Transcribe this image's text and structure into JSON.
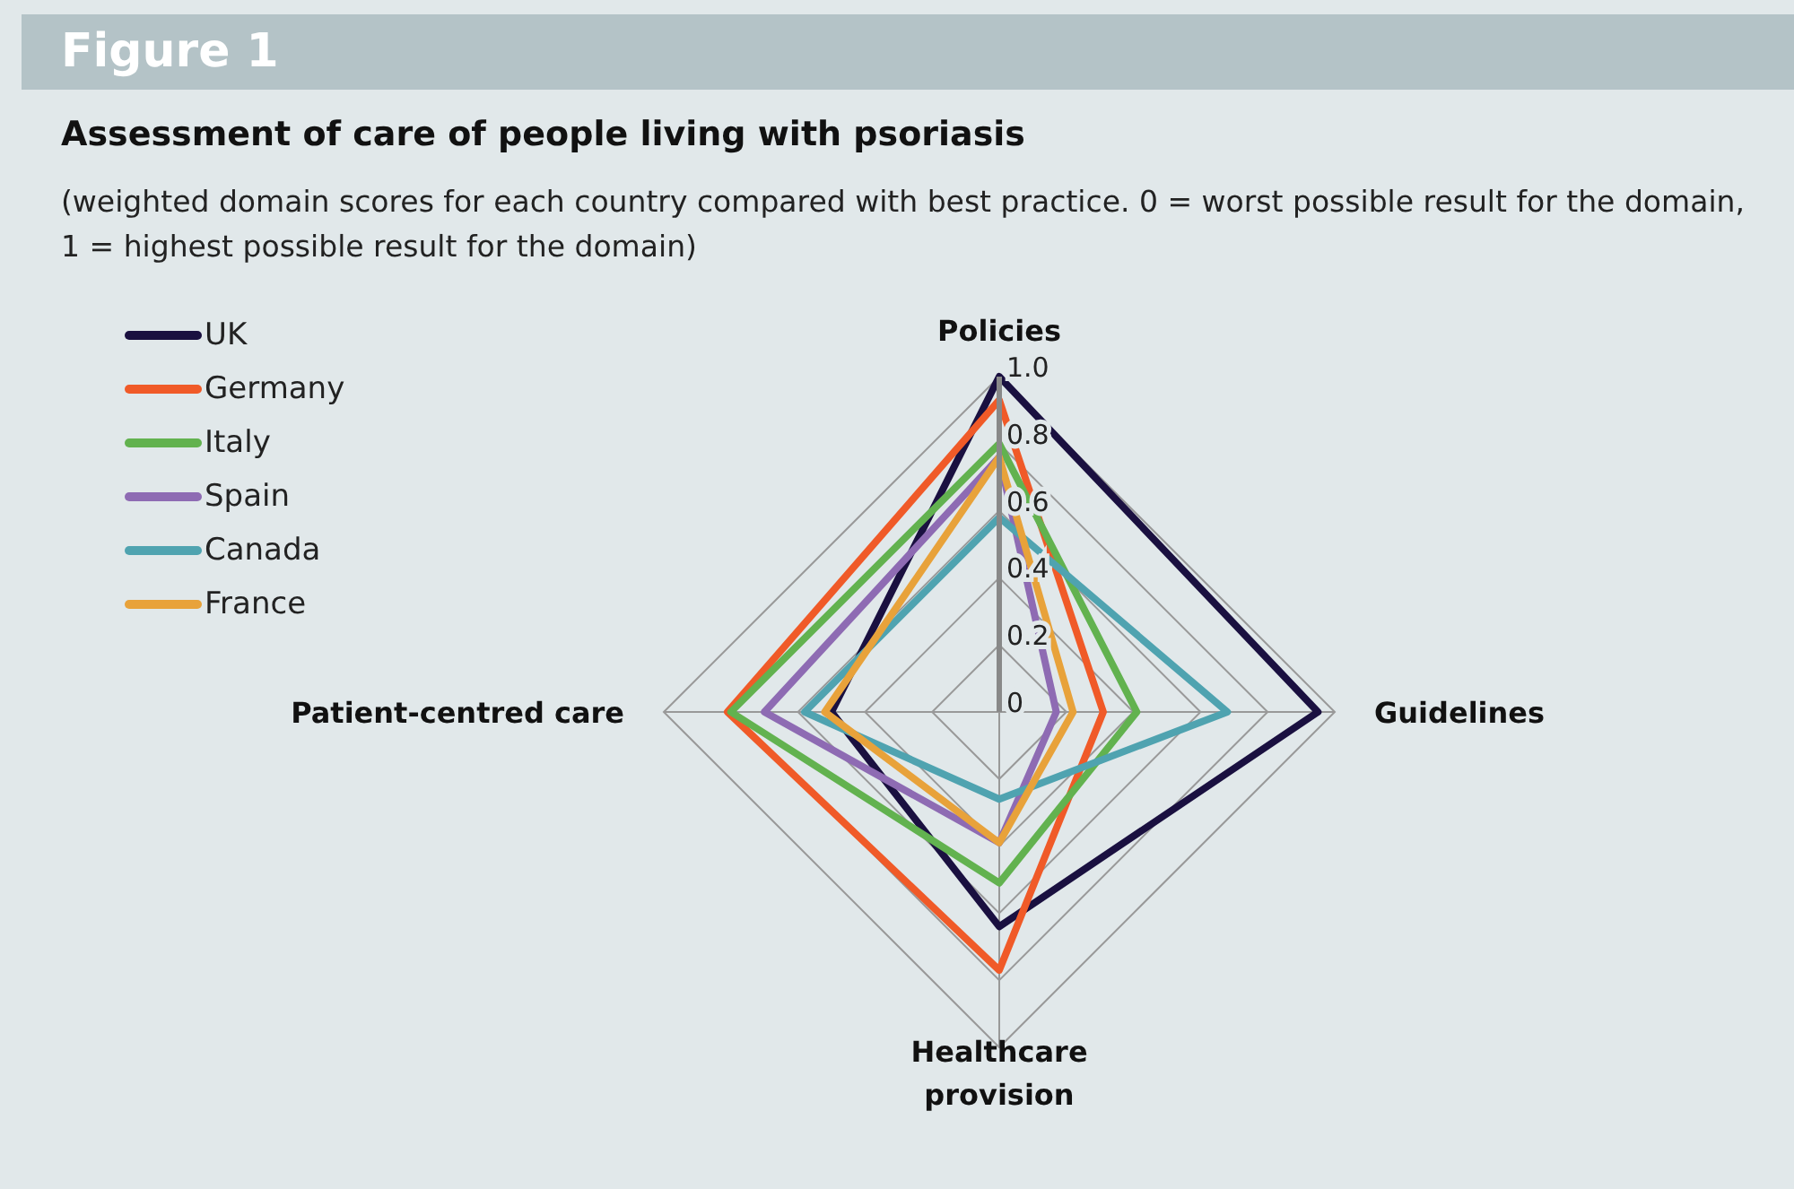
{
  "chart_data": {
    "type": "radar",
    "title": "Assessment of care of people living with psoriasis",
    "subtitle": "(weighted domain scores for each country compared with best practice. 0 = worst possible result for the domain, 1 = highest possible result for the domain)",
    "annotations": [
      "Figure 1"
    ],
    "categories": [
      "Policies",
      "Guidelines",
      "Healthcare provision",
      "Patient-centred care"
    ],
    "series": [
      {
        "name": "UK",
        "color": "#1a1040",
        "values": [
          1.0,
          0.95,
          0.64,
          0.5
        ]
      },
      {
        "name": "Germany",
        "color": "#f05a28",
        "values": [
          0.93,
          0.31,
          0.77,
          0.81
        ]
      },
      {
        "name": "Italy",
        "color": "#62b24f",
        "values": [
          0.8,
          0.41,
          0.51,
          0.8
        ]
      },
      {
        "name": "Spain",
        "color": "#8e6bb3",
        "values": [
          0.76,
          0.17,
          0.39,
          0.7
        ]
      },
      {
        "name": "Canada",
        "color": "#4fa3b0",
        "values": [
          0.58,
          0.68,
          0.26,
          0.58
        ]
      },
      {
        "name": "France",
        "color": "#e8a23a",
        "values": [
          0.76,
          0.22,
          0.39,
          0.52
        ]
      }
    ],
    "ylim": [
      0,
      1
    ],
    "yticks": [
      0,
      0.2,
      0.4,
      0.6,
      0.8,
      {
        "value": 1,
        "label": "1.0"
      }
    ],
    "grid": true,
    "legend": "top left",
    "line_style": "solid",
    "marker": "none"
  }
}
